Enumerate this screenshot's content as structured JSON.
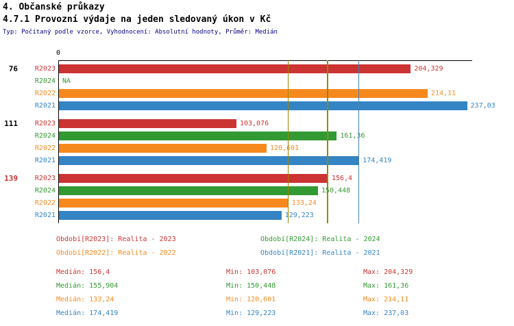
{
  "header": {
    "title_line1": "4. Občanské průkazy",
    "title_line2": "4.7.1 Provozní výdaje na jeden sledovaný úkon v Kč",
    "subtitle": "Typ: Počítaný podle vzorce, Vyhodnocení: Absolutní hodnoty, Průměr: Medián"
  },
  "colors": {
    "series": {
      "R2023": "#cc3333",
      "R2024": "#339933",
      "R2022": "#f6891e",
      "R2021": "#3584c4"
    },
    "median_lines": {
      "R2023": "#9a8a00",
      "R2024": "#7d8f00",
      "R2022": "#a08400",
      "R2021": "#4682b4"
    },
    "group_label_highlight": "#cc3333",
    "subtitle_color": "#000080",
    "axis_color": "#000000"
  },
  "chart_data": {
    "type": "bar",
    "orientation": "horizontal",
    "value_unit": "Kč",
    "xlim": [
      0,
      240
    ],
    "zero_tick_label": "0",
    "series_order": [
      "R2023",
      "R2024",
      "R2022",
      "R2021"
    ],
    "groups": [
      {
        "label": "76",
        "highlight": false,
        "bars": [
          {
            "series": "R2023",
            "value": 204.329,
            "display": "204,329"
          },
          {
            "series": "R2024",
            "value": null,
            "display": "NA"
          },
          {
            "series": "R2022",
            "value": 214.11,
            "display": "214,11"
          },
          {
            "series": "R2021",
            "value": 237.03,
            "display": "237,03"
          }
        ]
      },
      {
        "label": "111",
        "highlight": false,
        "bars": [
          {
            "series": "R2023",
            "value": 103.076,
            "display": "103,076"
          },
          {
            "series": "R2024",
            "value": 161.36,
            "display": "161,36"
          },
          {
            "series": "R2022",
            "value": 120.601,
            "display": "120,601"
          },
          {
            "series": "R2021",
            "value": 174.419,
            "display": "174,419"
          }
        ]
      },
      {
        "label": "139",
        "highlight": true,
        "bars": [
          {
            "series": "R2023",
            "value": 156.4,
            "display": "156,4"
          },
          {
            "series": "R2024",
            "value": 150.448,
            "display": "150,448"
          },
          {
            "series": "R2022",
            "value": 133.24,
            "display": "133,24"
          },
          {
            "series": "R2021",
            "value": 129.223,
            "display": "129,223"
          }
        ]
      }
    ],
    "median_lines": [
      {
        "series": "R2022",
        "value": 133.24
      },
      {
        "series": "R2024",
        "value": 155.904
      },
      {
        "series": "R2023",
        "value": 156.4
      },
      {
        "series": "R2021",
        "value": 174.419
      }
    ]
  },
  "legend": [
    {
      "series": "R2023",
      "label": "Období[R2023]: Realita - 2023"
    },
    {
      "series": "R2024",
      "label": "Období[R2024]: Realita - 2024"
    },
    {
      "series": "R2022",
      "label": "Období[R2022]: Realita - 2022"
    },
    {
      "series": "R2021",
      "label": "Období[R2021]: Realita - 2021"
    }
  ],
  "stats": [
    {
      "series": "R2023",
      "median": "Medián: 156,4",
      "min": "Min: 103,076",
      "max": "Max: 204,329"
    },
    {
      "series": "R2024",
      "median": "Medián: 155,904",
      "min": "Min: 150,448",
      "max": "Max: 161,36"
    },
    {
      "series": "R2022",
      "median": "Medián: 133,24",
      "min": "Min: 120,601",
      "max": "Max: 214,11"
    },
    {
      "series": "R2021",
      "median": "Medián: 174,419",
      "min": "Min: 129,223",
      "max": "Max: 237,03"
    }
  ]
}
